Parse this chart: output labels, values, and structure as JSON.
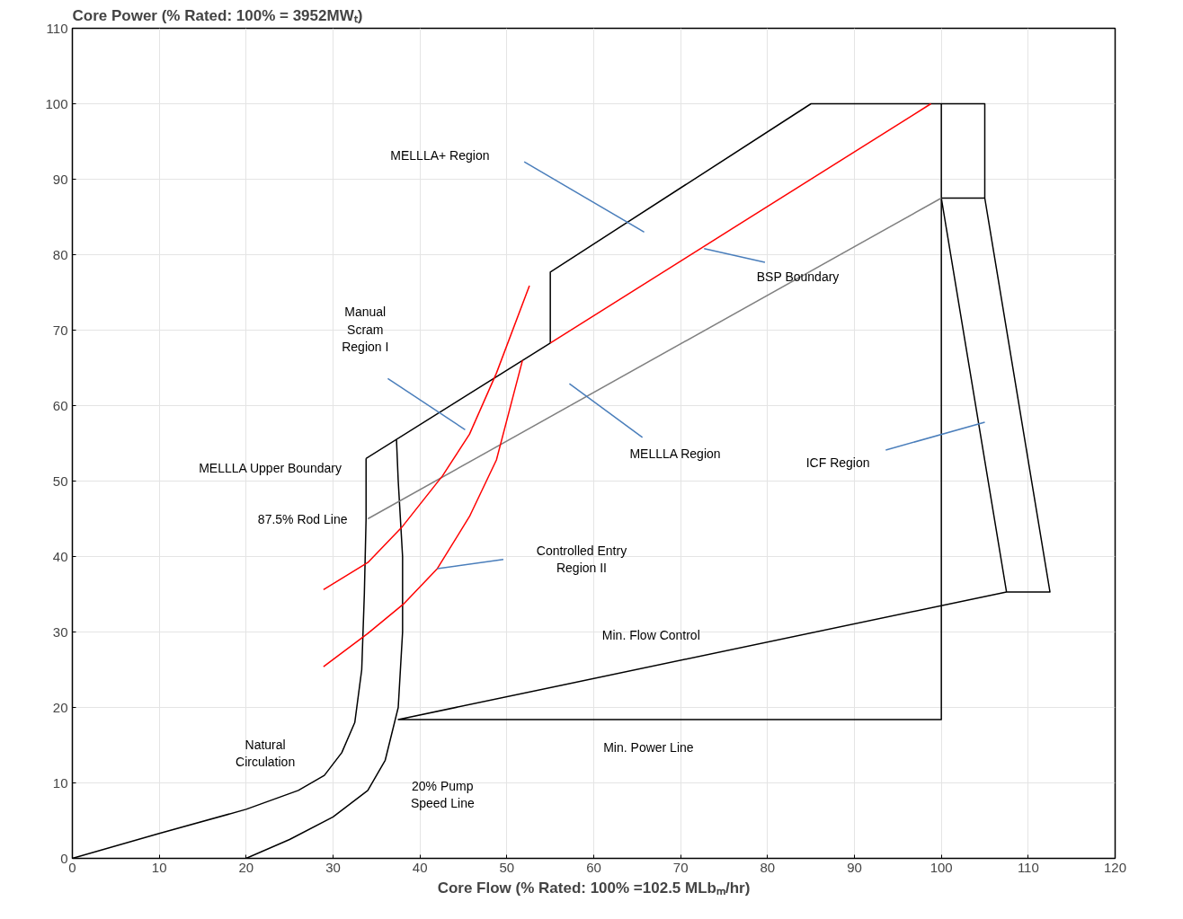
{
  "chart_data": {
    "type": "line",
    "title": "Core Power (% Rated: 100% = 3952MWₜ)",
    "xlabel": "Core Flow (% Rated: 100% =102.5 MLbₘ/hr)",
    "xlim": [
      0,
      120
    ],
    "ylim": [
      0,
      110
    ],
    "xticks": [
      0,
      10,
      20,
      30,
      40,
      50,
      60,
      70,
      80,
      90,
      100,
      110,
      120
    ],
    "yticks": [
      0,
      10,
      20,
      30,
      40,
      50,
      60,
      70,
      80,
      90,
      100,
      110
    ],
    "grid": true,
    "series": [
      {
        "color": "#000000",
        "x": [
          0,
          10,
          20,
          26,
          29,
          31,
          32.5,
          33.3,
          33.6,
          33.8,
          33.8
        ],
        "values": [
          0,
          3.3,
          6.5,
          9,
          11,
          14,
          18,
          25,
          35,
          45,
          53
        ]
      },
      {
        "color": "#000000",
        "x": [
          20,
          25,
          30,
          34,
          36,
          37.5,
          38,
          38,
          37.5,
          37.3
        ],
        "values": [
          0,
          2.5,
          5.5,
          9,
          13,
          20,
          30,
          40,
          50,
          55.5
        ]
      },
      {
        "color": "#000000",
        "x": [
          33.8,
          55,
          55,
          85,
          105,
          105,
          112.5,
          107.5,
          37.5,
          100,
          100
        ],
        "values": [
          53,
          68.3,
          77.7,
          100,
          100,
          87.5,
          35.3,
          35.3,
          18.4,
          18.4,
          100
        ]
      },
      {
        "color": "#000000",
        "x": [
          105,
          100,
          107.5
        ],
        "values": [
          87.5,
          87.5,
          35.3
        ]
      },
      {
        "color": "#ff0000",
        "x": [
          55,
          98.8
        ],
        "values": [
          68.3,
          100
        ]
      },
      {
        "color": "#808080",
        "x": [
          34,
          100
        ],
        "values": [
          45,
          87.5
        ]
      },
      {
        "color": "#ff0000",
        "x": [
          28.9,
          34,
          38,
          42.6,
          45.7,
          48.8,
          52.6
        ],
        "values": [
          35.6,
          39.2,
          44,
          50.7,
          56.2,
          64.3,
          75.9
        ]
      },
      {
        "color": "#ff0000",
        "x": [
          28.9,
          34,
          38.2,
          42,
          45.7,
          48.8,
          51.8
        ],
        "values": [
          25.4,
          29.8,
          33.8,
          38.4,
          45.3,
          52.8,
          66
        ]
      },
      {
        "color": "#4a7ebb",
        "x": [
          52,
          65.8
        ],
        "values": [
          92.3,
          83
        ]
      },
      {
        "color": "#4a7ebb",
        "x": [
          72.7,
          79.7
        ],
        "values": [
          80.8,
          79
        ]
      },
      {
        "color": "#4a7ebb",
        "x": [
          36.3,
          45.2
        ],
        "values": [
          63.6,
          56.8
        ]
      },
      {
        "color": "#4a7ebb",
        "x": [
          57.2,
          65.6
        ],
        "values": [
          62.9,
          55.8
        ]
      },
      {
        "color": "#4a7ebb",
        "x": [
          93.6,
          105
        ],
        "values": [
          54.1,
          57.8
        ]
      },
      {
        "color": "#4a7ebb",
        "x": [
          42,
          49.6
        ],
        "values": [
          38.4,
          39.6
        ]
      }
    ],
    "annotations": [
      "MELLLA+ Region",
      "BSP Boundary",
      "Manual\nScram\nRegion I",
      "MELLLA Region",
      "ICF Region",
      "MELLLA Upper Boundary",
      "87.5% Rod Line",
      "Controlled Entry\nRegion II",
      "Min. Flow Control",
      "Min. Power Line",
      "Natural\nCirculation",
      "20% Pump\nSpeed Line"
    ]
  }
}
